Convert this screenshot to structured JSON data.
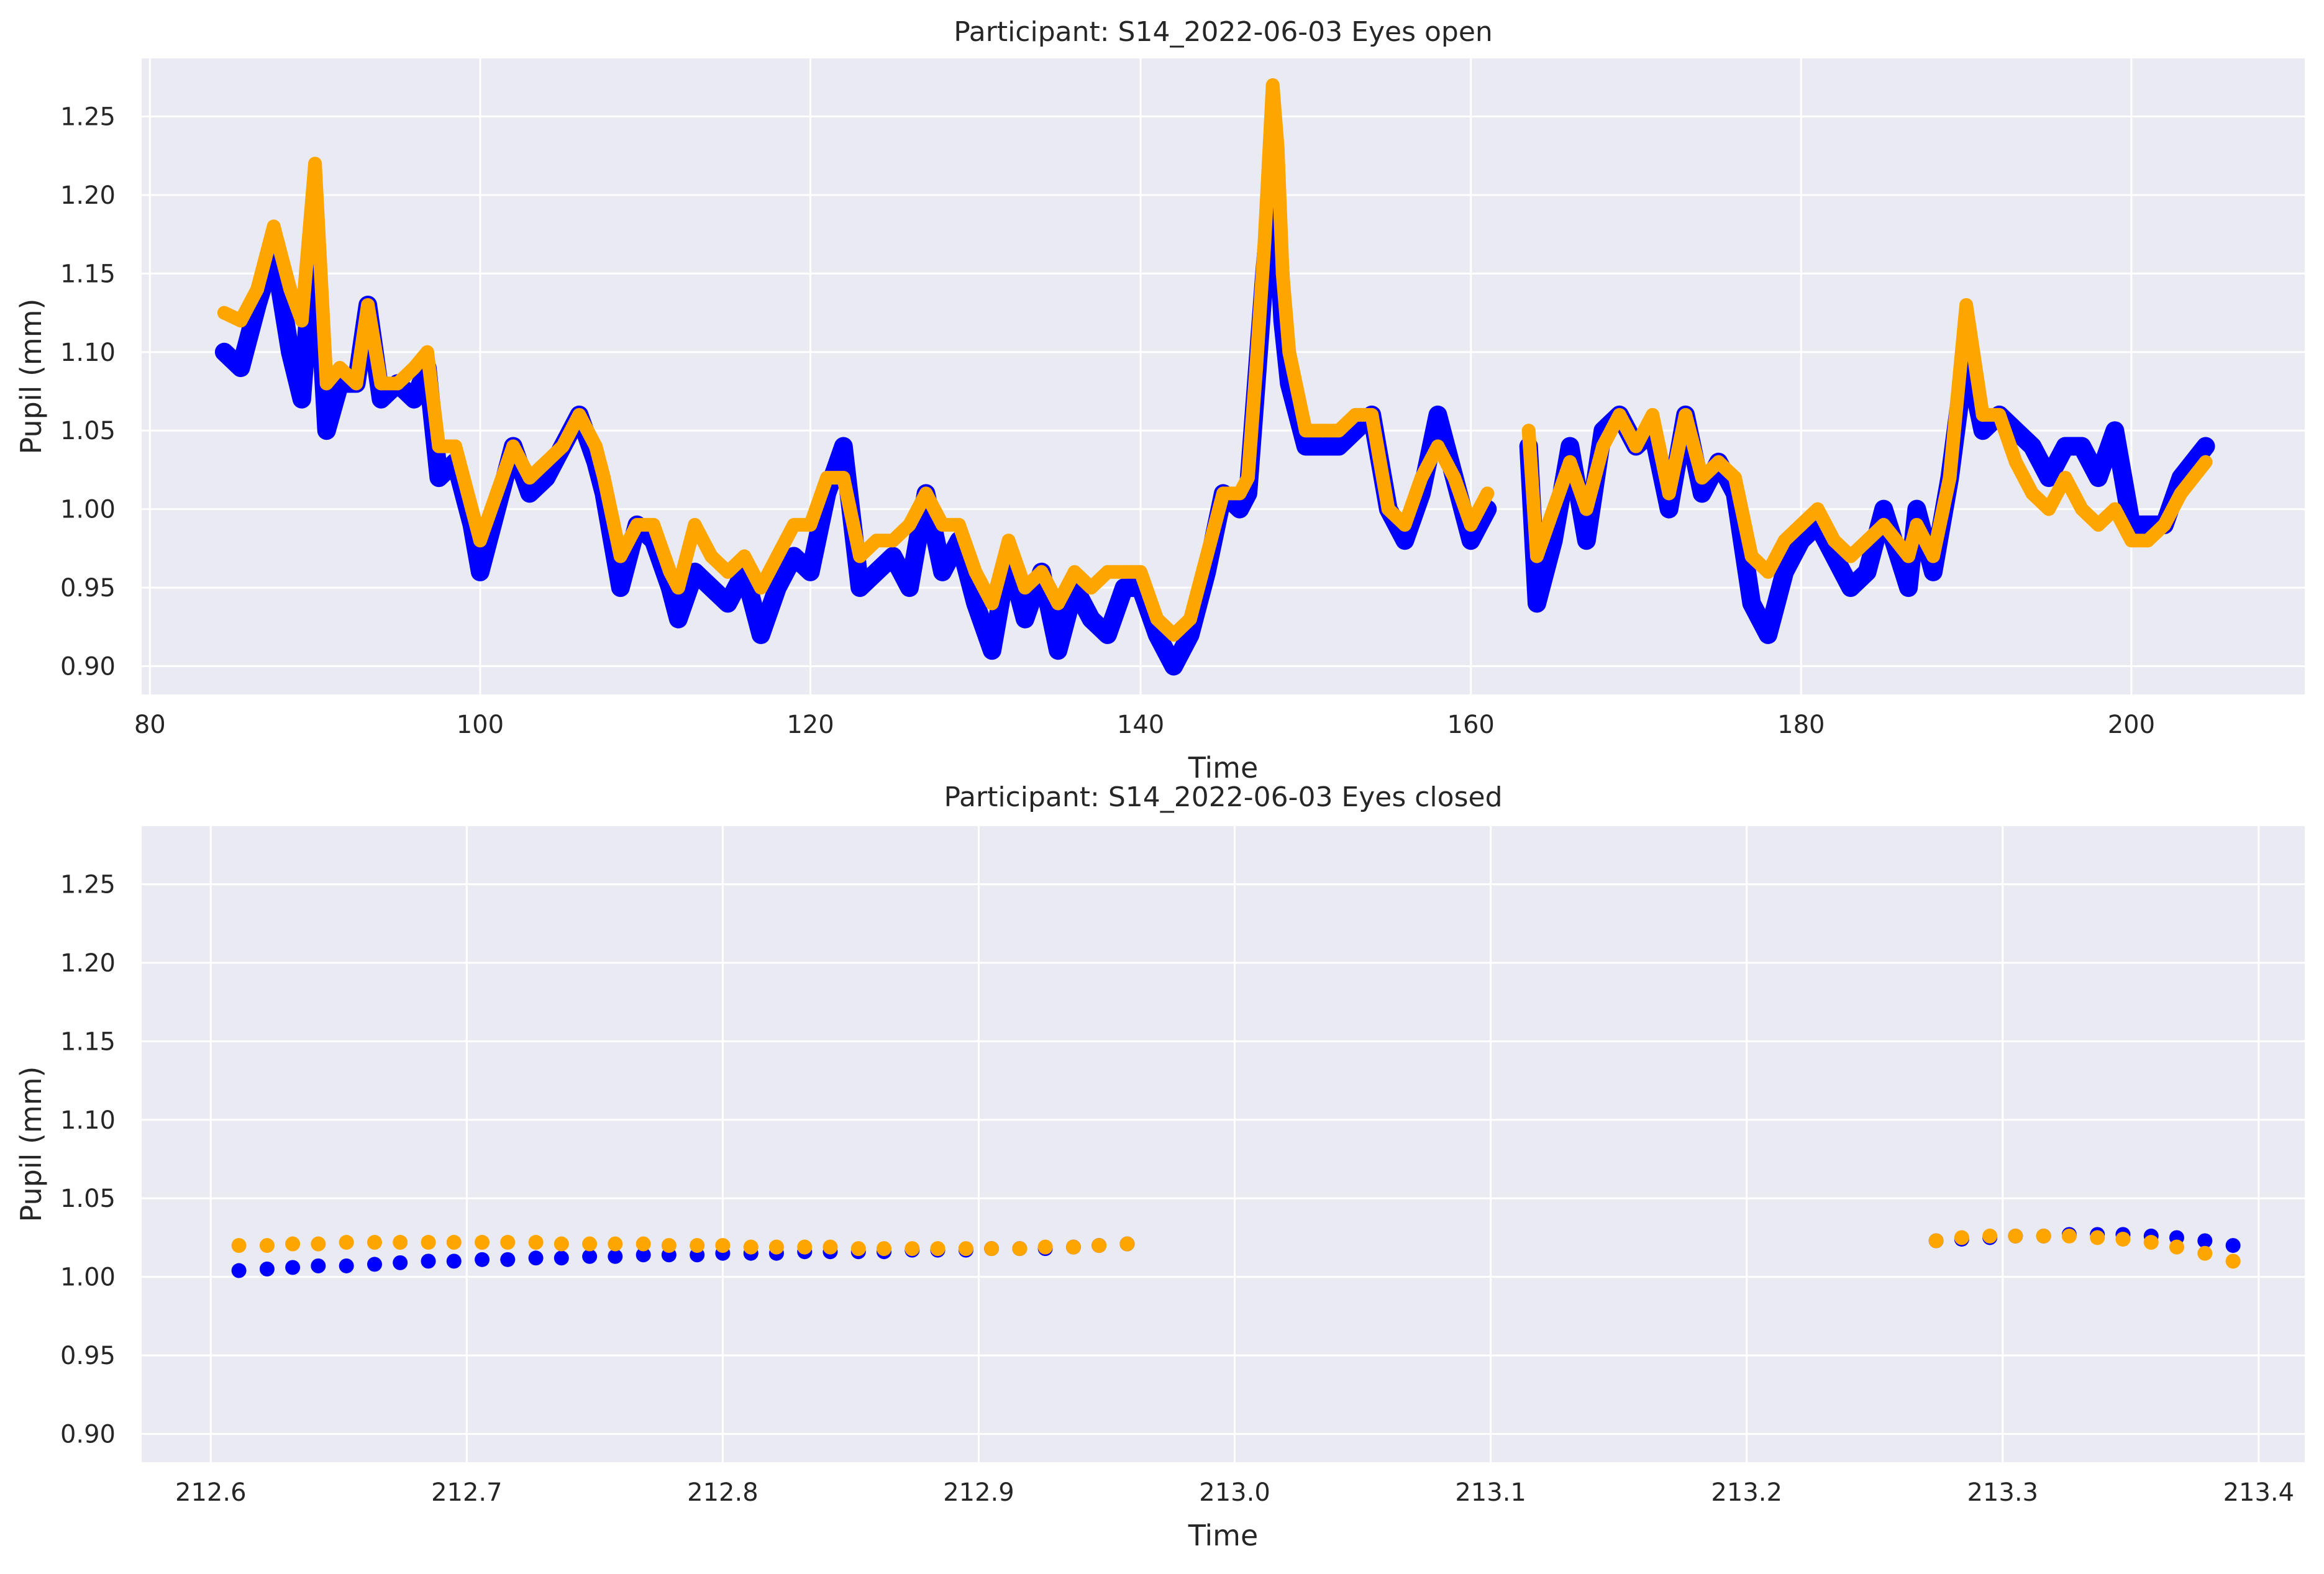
{
  "colors": {
    "left_eye": "#0000ff",
    "right_eye": "#ffa500",
    "panel_background": "#eaeaf2",
    "grid": "#ffffff"
  },
  "chart_data": [
    {
      "type": "scatter",
      "title": "Participant: S14_2022-06-03 Eyes open",
      "xlabel": "Time",
      "ylabel": "Pupil (mm)",
      "xlim": [
        79.5,
        210.5
      ],
      "ylim": [
        0.882,
        1.287
      ],
      "xticks": [
        80,
        100,
        120,
        140,
        160,
        180,
        200
      ],
      "xtick_labels": [
        "80",
        "100",
        "120",
        "140",
        "160",
        "180",
        "200"
      ],
      "yticks": [
        0.9,
        0.95,
        1.0,
        1.05,
        1.1,
        1.15,
        1.2,
        1.25
      ],
      "ytick_labels": [
        "0.90",
        "0.95",
        "1.00",
        "1.05",
        "1.10",
        "1.15",
        "1.20",
        "1.25"
      ],
      "grid": true,
      "legend": "none",
      "series": [
        {
          "color": "blue",
          "x": [
            84.5,
            85.5,
            86.5,
            87.5,
            88.5,
            89.2,
            90.0,
            90.7,
            91.5,
            92.5,
            93.2,
            94.0,
            95.0,
            96.0,
            96.8,
            97.5,
            98.5,
            99.5,
            100.0,
            101.0,
            102.0,
            103.0,
            104.0,
            105.0,
            106.0,
            107.0,
            107.5,
            108.5,
            109.5,
            110.5,
            111.5,
            112.0,
            113.0,
            114.0,
            115.0,
            116.0,
            117.0,
            118.0,
            119.0,
            120.0,
            121.0,
            122.0,
            123.0,
            124.0,
            125.0,
            126.0,
            127.0,
            128.0,
            129.0,
            130.0,
            131.0,
            132.0,
            133.0,
            134.0,
            135.0,
            136.0,
            137.0,
            138.0,
            139.0,
            140.0,
            141.0,
            142.0,
            143.0,
            144.0,
            145.0,
            146.0,
            146.5,
            147.0,
            147.5,
            148.0,
            148.3,
            148.6,
            149.0,
            150.0,
            151.0,
            152.0,
            153.0,
            154.0,
            155.0,
            156.0,
            157.0,
            158.0,
            159.0,
            160.0,
            161.0,
            163.5,
            164.0,
            165.0,
            166.0,
            167.0,
            168.0,
            169.0,
            170.0,
            171.0,
            172.0,
            173.0,
            174.0,
            175.0,
            176.0,
            177.0,
            178.0,
            179.0,
            180.0,
            181.0,
            182.0,
            183.0,
            184.0,
            185.0,
            186.5,
            187.0,
            188.0,
            189.0,
            190.0,
            191.0,
            192.0,
            193.0,
            194.0,
            195.0,
            196.0,
            197.0,
            198.0,
            199.0,
            200.0,
            201.0,
            202.0,
            203.0,
            204.5
          ],
          "y": [
            1.1,
            1.09,
            1.13,
            1.165,
            1.1,
            1.07,
            1.18,
            1.05,
            1.08,
            1.08,
            1.13,
            1.07,
            1.08,
            1.07,
            1.09,
            1.02,
            1.03,
            0.99,
            0.96,
            1.0,
            1.04,
            1.01,
            1.02,
            1.04,
            1.06,
            1.03,
            1.01,
            0.95,
            0.99,
            0.98,
            0.95,
            0.93,
            0.96,
            0.95,
            0.94,
            0.96,
            0.92,
            0.95,
            0.97,
            0.96,
            1.01,
            1.04,
            0.95,
            0.96,
            0.97,
            0.95,
            1.01,
            0.96,
            0.98,
            0.94,
            0.91,
            0.97,
            0.93,
            0.96,
            0.91,
            0.95,
            0.93,
            0.92,
            0.95,
            0.95,
            0.92,
            0.9,
            0.92,
            0.96,
            1.01,
            1.0,
            1.01,
            1.08,
            1.15,
            1.21,
            1.18,
            1.12,
            1.08,
            1.04,
            1.04,
            1.04,
            1.05,
            1.06,
            1.0,
            0.98,
            1.01,
            1.06,
            1.02,
            0.98,
            1.0,
            1.04,
            0.94,
            0.98,
            1.04,
            0.98,
            1.05,
            1.06,
            1.04,
            1.05,
            1.0,
            1.06,
            1.01,
            1.03,
            1.01,
            0.94,
            0.92,
            0.96,
            0.98,
            0.99,
            0.97,
            0.95,
            0.96,
            1.0,
            0.95,
            1.0,
            0.96,
            1.02,
            1.1,
            1.05,
            1.06,
            1.05,
            1.04,
            1.02,
            1.04,
            1.04,
            1.02,
            1.05,
            0.99,
            0.99,
            0.99,
            1.02,
            1.04
          ]
        },
        {
          "color": "orange",
          "x": [
            84.5,
            85.5,
            86.5,
            87.5,
            88.5,
            89.2,
            90.0,
            90.7,
            91.5,
            92.5,
            93.2,
            94.0,
            95.0,
            96.0,
            96.8,
            97.5,
            98.5,
            99.5,
            100.0,
            101.0,
            102.0,
            103.0,
            104.0,
            105.0,
            106.0,
            107.0,
            107.5,
            108.5,
            109.5,
            110.5,
            111.5,
            112.0,
            113.0,
            114.0,
            115.0,
            116.0,
            117.0,
            118.0,
            119.0,
            120.0,
            121.0,
            122.0,
            123.0,
            124.0,
            125.0,
            126.0,
            127.0,
            128.0,
            129.0,
            130.0,
            131.0,
            132.0,
            133.0,
            134.0,
            135.0,
            136.0,
            137.0,
            138.0,
            139.0,
            140.0,
            141.0,
            142.0,
            143.0,
            144.0,
            145.0,
            146.0,
            146.5,
            147.0,
            147.5,
            148.0,
            148.3,
            148.6,
            149.0,
            150.0,
            151.0,
            152.0,
            153.0,
            154.0,
            155.0,
            156.0,
            157.0,
            158.0,
            159.0,
            160.0,
            161.0,
            163.5,
            164.0,
            165.0,
            166.0,
            167.0,
            168.0,
            169.0,
            170.0,
            171.0,
            172.0,
            173.0,
            174.0,
            175.0,
            176.0,
            177.0,
            178.0,
            179.0,
            180.0,
            181.0,
            182.0,
            183.0,
            184.0,
            185.0,
            186.5,
            187.0,
            188.0,
            189.0,
            190.0,
            191.0,
            192.0,
            193.0,
            194.0,
            195.0,
            196.0,
            197.0,
            198.0,
            199.0,
            200.0,
            201.0,
            202.0,
            203.0,
            204.5
          ],
          "y": [
            1.125,
            1.12,
            1.14,
            1.18,
            1.14,
            1.12,
            1.22,
            1.08,
            1.09,
            1.08,
            1.13,
            1.08,
            1.08,
            1.09,
            1.1,
            1.04,
            1.04,
            1.0,
            0.98,
            1.01,
            1.04,
            1.02,
            1.03,
            1.04,
            1.06,
            1.04,
            1.02,
            0.97,
            0.99,
            0.99,
            0.96,
            0.95,
            0.99,
            0.97,
            0.96,
            0.97,
            0.95,
            0.97,
            0.99,
            0.99,
            1.02,
            1.02,
            0.97,
            0.98,
            0.98,
            0.99,
            1.01,
            0.99,
            0.99,
            0.96,
            0.94,
            0.98,
            0.95,
            0.96,
            0.94,
            0.96,
            0.95,
            0.96,
            0.96,
            0.96,
            0.93,
            0.92,
            0.93,
            0.97,
            1.01,
            1.01,
            1.02,
            1.09,
            1.17,
            1.27,
            1.23,
            1.15,
            1.1,
            1.05,
            1.05,
            1.05,
            1.06,
            1.06,
            1.0,
            0.99,
            1.02,
            1.04,
            1.02,
            0.99,
            1.01,
            1.05,
            0.97,
            1.0,
            1.03,
            1.0,
            1.04,
            1.06,
            1.04,
            1.06,
            1.01,
            1.06,
            1.02,
            1.03,
            1.02,
            0.97,
            0.96,
            0.98,
            0.99,
            1.0,
            0.98,
            0.97,
            0.98,
            0.99,
            0.97,
            0.99,
            0.97,
            1.02,
            1.13,
            1.06,
            1.06,
            1.03,
            1.01,
            1.0,
            1.02,
            1.0,
            0.99,
            1.0,
            0.98,
            0.98,
            0.99,
            1.01,
            1.03
          ]
        }
      ]
    },
    {
      "type": "scatter",
      "title": "Participant: S14_2022-06-03 Eyes closed",
      "xlabel": "Time",
      "ylabel": "Pupil (mm)",
      "xlim": [
        212.573,
        213.418
      ],
      "ylim": [
        0.882,
        1.287
      ],
      "xticks": [
        212.6,
        212.7,
        212.8,
        212.9,
        213.0,
        213.1,
        213.2,
        213.3,
        213.4
      ],
      "xtick_labels": [
        "212.6",
        "212.7",
        "212.8",
        "212.9",
        "213.0",
        "213.1",
        "213.2",
        "213.3",
        "213.4"
      ],
      "yticks": [
        0.9,
        0.95,
        1.0,
        1.05,
        1.1,
        1.15,
        1.2,
        1.25
      ],
      "ytick_labels": [
        "0.90",
        "0.95",
        "1.00",
        "1.05",
        "1.10",
        "1.15",
        "1.20",
        "1.25"
      ],
      "grid": true,
      "legend": "none",
      "series": [
        {
          "color": "blue",
          "x": [
            212.611,
            212.622,
            212.632,
            212.642,
            212.653,
            212.664,
            212.674,
            212.685,
            212.695,
            212.706,
            212.716,
            212.727,
            212.737,
            212.748,
            212.758,
            212.769,
            212.779,
            212.79,
            212.8,
            212.811,
            212.821,
            212.832,
            212.842,
            212.853,
            212.863,
            212.874,
            212.884,
            212.895,
            212.905,
            212.916,
            212.926,
            212.937,
            212.947,
            212.958,
            213.274,
            213.284,
            213.295,
            213.305,
            213.316,
            213.326,
            213.337,
            213.347,
            213.358,
            213.368,
            213.379,
            213.39
          ],
          "y": [
            1.004,
            1.005,
            1.006,
            1.007,
            1.007,
            1.008,
            1.009,
            1.01,
            1.01,
            1.011,
            1.011,
            1.012,
            1.012,
            1.013,
            1.013,
            1.014,
            1.014,
            1.014,
            1.015,
            1.015,
            1.015,
            1.016,
            1.016,
            1.016,
            1.016,
            1.017,
            1.017,
            1.017,
            1.018,
            1.018,
            1.018,
            1.019,
            1.02,
            1.021,
            1.023,
            1.024,
            1.025,
            1.026,
            1.026,
            1.027,
            1.027,
            1.027,
            1.026,
            1.025,
            1.023,
            1.02
          ]
        },
        {
          "color": "orange",
          "x": [
            212.611,
            212.622,
            212.632,
            212.642,
            212.653,
            212.664,
            212.674,
            212.685,
            212.695,
            212.706,
            212.716,
            212.727,
            212.737,
            212.748,
            212.758,
            212.769,
            212.779,
            212.79,
            212.8,
            212.811,
            212.821,
            212.832,
            212.842,
            212.853,
            212.863,
            212.874,
            212.884,
            212.895,
            212.905,
            212.916,
            212.926,
            212.937,
            212.947,
            212.958,
            213.274,
            213.284,
            213.295,
            213.305,
            213.316,
            213.326,
            213.337,
            213.347,
            213.358,
            213.368,
            213.379,
            213.39
          ],
          "y": [
            1.02,
            1.02,
            1.021,
            1.021,
            1.022,
            1.022,
            1.022,
            1.022,
            1.022,
            1.022,
            1.022,
            1.022,
            1.021,
            1.021,
            1.021,
            1.021,
            1.02,
            1.02,
            1.02,
            1.019,
            1.019,
            1.019,
            1.019,
            1.018,
            1.018,
            1.018,
            1.018,
            1.018,
            1.018,
            1.018,
            1.019,
            1.019,
            1.02,
            1.021,
            1.023,
            1.025,
            1.026,
            1.026,
            1.026,
            1.026,
            1.025,
            1.024,
            1.022,
            1.019,
            1.015,
            1.01
          ]
        }
      ]
    }
  ]
}
